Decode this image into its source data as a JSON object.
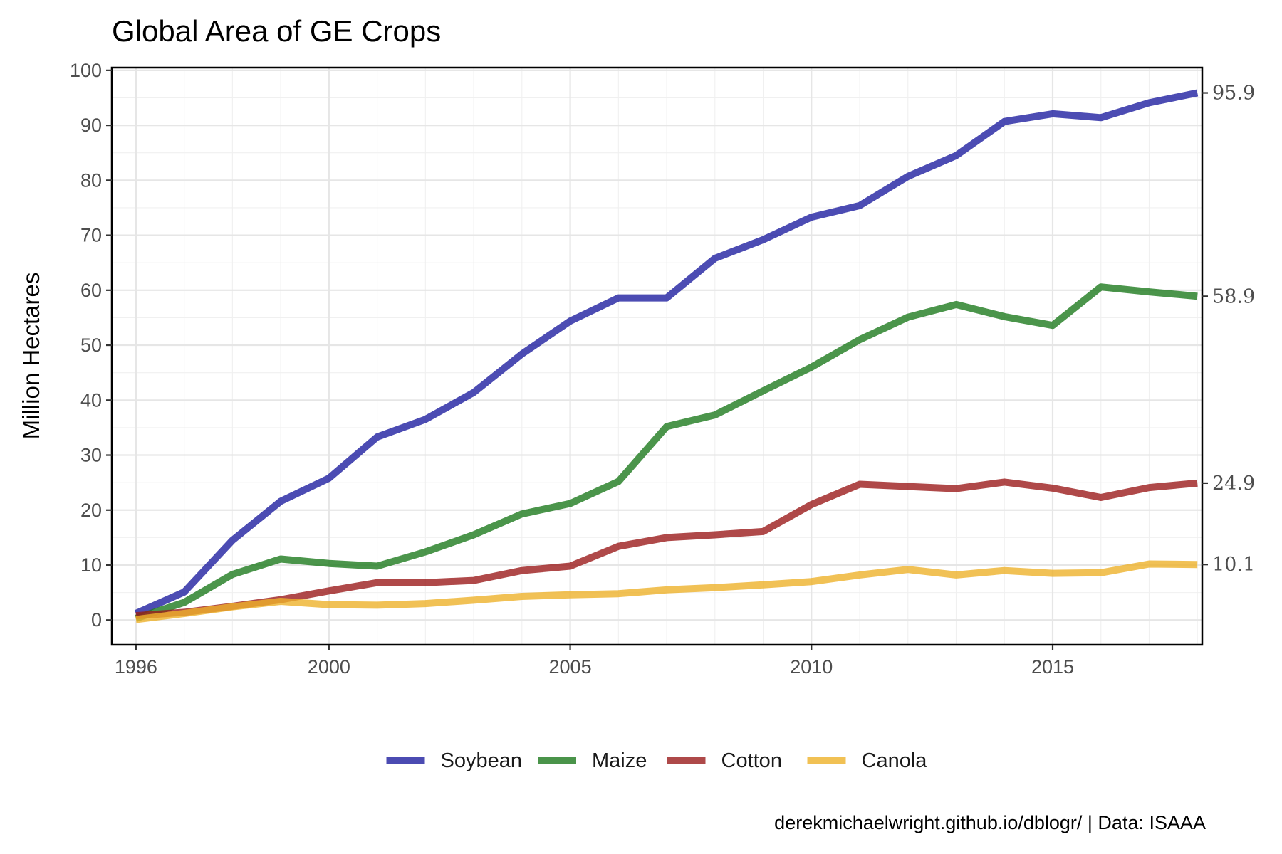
{
  "chart_data": {
    "type": "line",
    "title": "Global Area of GE Crops",
    "xlabel": "",
    "ylabel": "Million Hectares",
    "caption": "derekmichaelwright.github.io/dblogr/ | Data: ISAAA",
    "x": [
      1996,
      1997,
      1998,
      1999,
      2000,
      2001,
      2002,
      2003,
      2004,
      2005,
      2006,
      2007,
      2008,
      2009,
      2010,
      2011,
      2012,
      2013,
      2014,
      2015,
      2016,
      2017,
      2018
    ],
    "xlim": [
      1995.5,
      2018.1
    ],
    "ylim": [
      -4.5,
      100.5
    ],
    "x_ticks": [
      1996,
      2000,
      2005,
      2010,
      2015
    ],
    "x_tick_labels": [
      "1996",
      "2000",
      "2005",
      "2010",
      "2015"
    ],
    "y_ticks": [
      0,
      10,
      20,
      30,
      40,
      50,
      60,
      70,
      80,
      90,
      100
    ],
    "y_tick_labels": [
      "0",
      "10",
      "20",
      "30",
      "40",
      "50",
      "60",
      "70",
      "80",
      "90",
      "100"
    ],
    "grid": true,
    "legend_position": "bottom",
    "series": [
      {
        "name": "Soybean",
        "color": "#1f1fa0",
        "values": [
          1.2,
          5.1,
          14.5,
          21.6,
          25.8,
          33.3,
          36.5,
          41.4,
          48.4,
          54.4,
          58.6,
          58.6,
          65.8,
          69.2,
          73.3,
          75.4,
          80.7,
          84.5,
          90.7,
          92.1,
          91.4,
          94.1,
          95.9
        ],
        "right_label": "95.9"
      },
      {
        "name": "Maize",
        "color": "#1e7a1e",
        "values": [
          0.3,
          3.2,
          8.3,
          11.1,
          10.3,
          9.8,
          12.4,
          15.5,
          19.3,
          21.2,
          25.2,
          35.2,
          37.3,
          41.7,
          46.0,
          51.0,
          55.1,
          57.4,
          55.2,
          53.6,
          60.6,
          59.7,
          58.9
        ],
        "right_label": "58.9"
      },
      {
        "name": "Cotton",
        "color": "#9b1c1c",
        "values": [
          0.8,
          1.4,
          2.5,
          3.7,
          5.3,
          6.8,
          6.8,
          7.2,
          9.0,
          9.8,
          13.4,
          15.0,
          15.5,
          16.1,
          21.0,
          24.7,
          24.3,
          23.9,
          25.1,
          24.0,
          22.3,
          24.1,
          24.9
        ],
        "right_label": "24.9"
      },
      {
        "name": "Canola",
        "color": "#eeb22a",
        "values": [
          0.1,
          1.2,
          2.4,
          3.4,
          2.8,
          2.7,
          3.0,
          3.6,
          4.3,
          4.6,
          4.8,
          5.5,
          5.9,
          6.4,
          7.0,
          8.2,
          9.2,
          8.2,
          9.0,
          8.5,
          8.6,
          10.2,
          10.1
        ],
        "right_label": "10.1"
      }
    ]
  }
}
